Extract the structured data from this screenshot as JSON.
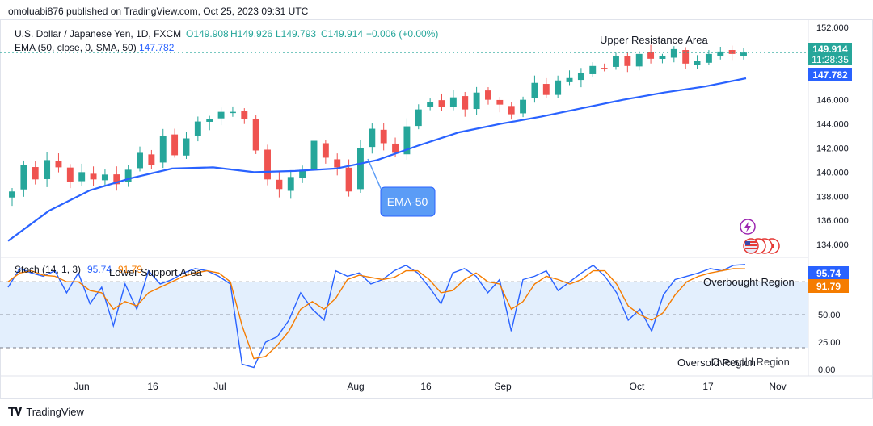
{
  "header": {
    "published": "omoluabi876 published on TradingView.com, Oct 25, 2023 09:31 UTC"
  },
  "legend": {
    "symbol": "U.S. Dollar / Japanese Yen, 1D, FXCM",
    "open": "O149.908",
    "high": "H149.926",
    "low": "L149.793",
    "close": "C149.914",
    "change": "+0.006 (+0.00%)",
    "ema_label": "EMA (50, close, 0, SMA, 50)",
    "ema_value": "147.782",
    "stoch_label": "Stoch (14, 1, 3)",
    "stoch_k": "95.74",
    "stoch_d": "91.79"
  },
  "price_tags": {
    "last": "149.914",
    "countdown": "11:28:35",
    "ema": "147.782",
    "stoch_k": "95.74",
    "stoch_d": "91.79"
  },
  "annotations": {
    "upper_resistance": "Upper Resistance Area",
    "lower_support": "Lower Support Area",
    "ema_callout": "EMA-50",
    "overbought": "Overbought Region",
    "oversold": "Oversold Region"
  },
  "footer": {
    "brand": "TradingView"
  },
  "colors": {
    "up": "#26a69a",
    "down": "#ef5350",
    "ema": "#2962ff",
    "stoch_k": "#2962ff",
    "stoch_d": "#f57c00",
    "band": "#e3effd",
    "callout": "#5b9cf6"
  },
  "chart_data": [
    {
      "type": "candlestick",
      "title": "U.S. Dollar / Japanese Yen, 1D, FXCM",
      "y_ticks": [
        "134.000",
        "136.000",
        "138.000",
        "140.000",
        "142.000",
        "144.000",
        "146.000",
        "148.000",
        "150.000",
        "152.000"
      ],
      "ylim": [
        133,
        152.4
      ],
      "x_ticks": [
        "Jun",
        "16",
        "Jul",
        "Aug",
        "16",
        "Sep",
        "Oct",
        "17",
        "Nov"
      ],
      "close_path": [
        138.4,
        140.6,
        139.4,
        141.0,
        140.4,
        139.2,
        140.0,
        139.4,
        139.8,
        139.0,
        140.2,
        141.6,
        140.6,
        143.0,
        141.4,
        142.8,
        144.2,
        144.4,
        145.0,
        145.0,
        144.4,
        141.8,
        139.4,
        138.6,
        139.6,
        140.2,
        142.6,
        141.2,
        140.4,
        138.4,
        142.0,
        143.6,
        142.4,
        141.6,
        143.8,
        145.2,
        145.8,
        145.4,
        146.2,
        145.2,
        146.6,
        146.0,
        145.6,
        144.8,
        146.0,
        147.4,
        146.4,
        147.6,
        147.8,
        148.2,
        148.8,
        148.6,
        149.6,
        148.8,
        149.8,
        149.4,
        149.6,
        150.2,
        149.0,
        149.2,
        149.8,
        150.0,
        149.8,
        149.914
      ],
      "ema_50": [
        134.3,
        136.8,
        138.5,
        139.5,
        140.3,
        140.4,
        140.0,
        140.1,
        140.3,
        141.0,
        142.2,
        143.3,
        144.0,
        144.6,
        145.3,
        146.0,
        146.6,
        147.1,
        147.782
      ],
      "series": [
        {
          "name": "EMA (50, close, 0, SMA, 50)",
          "last": 147.782
        }
      ]
    },
    {
      "type": "line",
      "title": "Stoch (14, 1, 3)",
      "y_ticks": [
        "0.00",
        "25.00",
        "50.00",
        "75.00"
      ],
      "ylim": [
        -5,
        100
      ],
      "levels": [
        80,
        50,
        20
      ],
      "series": [
        {
          "name": "%K",
          "last": 95.74,
          "values": [
            75,
            92,
            88,
            85,
            90,
            70,
            88,
            60,
            75,
            40,
            78,
            55,
            90,
            78,
            82,
            88,
            92,
            90,
            85,
            78,
            5,
            2,
            25,
            30,
            45,
            70,
            55,
            45,
            90,
            85,
            88,
            78,
            82,
            90,
            95,
            88,
            75,
            60,
            88,
            92,
            85,
            70,
            82,
            35,
            82,
            85,
            90,
            72,
            80,
            88,
            95,
            85,
            70,
            45,
            55,
            35,
            68,
            82,
            85,
            88,
            92,
            90,
            95,
            95.74
          ]
        },
        {
          "name": "%D",
          "last": 91.79,
          "values": [
            80,
            88,
            90,
            86,
            85,
            80,
            80,
            72,
            70,
            55,
            62,
            58,
            70,
            75,
            80,
            85,
            88,
            90,
            88,
            80,
            40,
            10,
            12,
            22,
            35,
            55,
            62,
            55,
            65,
            82,
            86,
            84,
            82,
            84,
            90,
            90,
            82,
            70,
            72,
            82,
            88,
            80,
            78,
            55,
            62,
            78,
            85,
            82,
            78,
            82,
            90,
            90,
            78,
            58,
            50,
            45,
            52,
            68,
            80,
            85,
            88,
            90,
            92,
            91.79
          ]
        }
      ]
    }
  ]
}
